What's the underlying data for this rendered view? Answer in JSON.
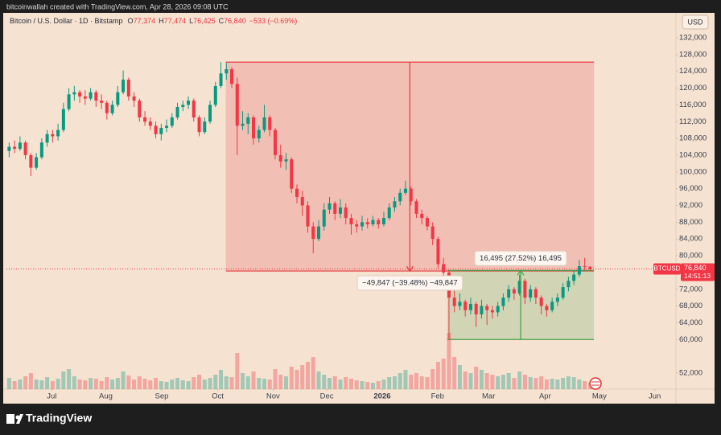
{
  "header": {
    "byline": "bitcoinwallah created with TradingView.com, Apr 28, 2026 09:08 UTC"
  },
  "footer": {
    "brand": "TradingView"
  },
  "chart_data": {
    "type": "candlestick",
    "legend": {
      "symbol": "Bitcoin / U.S. Dollar · 1D · Bitstamp",
      "items": [
        {
          "key": "O",
          "value": "77,374"
        },
        {
          "key": "H",
          "value": "77,474"
        },
        {
          "key": "L",
          "value": "76,425"
        },
        {
          "key": "C",
          "value": "76,840"
        }
      ],
      "change": "−533 (−0.69%)"
    },
    "currency": "USD",
    "price_tag": {
      "symbol": "BTCUSD",
      "price": "76,840",
      "countdown": "14:51:13"
    },
    "colors": {
      "up": "#089981",
      "down": "#f23645"
    },
    "xlim": [
      -0.5,
      122.8
    ],
    "ylim": [
      48160,
      138330
    ],
    "vlim": [
      0,
      100
    ],
    "xticks": [
      {
        "value": 7.85,
        "label": "Jul"
      },
      {
        "value": 17.8,
        "label": "Aug"
      },
      {
        "value": 28.1,
        "label": "Sep"
      },
      {
        "value": 38.4,
        "label": "Oct"
      },
      {
        "value": 48.6,
        "label": "Nov"
      },
      {
        "value": 58.5,
        "label": "Dec"
      },
      {
        "value": 68.7,
        "label": "2026"
      },
      {
        "value": 78.9,
        "label": "Feb"
      },
      {
        "value": 88.3,
        "label": "Mar"
      },
      {
        "value": 98.7,
        "label": "Apr"
      },
      {
        "value": 108.7,
        "label": "May"
      },
      {
        "value": 118.9,
        "label": "Jun"
      }
    ],
    "yticks": [
      {
        "value": 132000,
        "label": "132,000"
      },
      {
        "value": 128000,
        "label": "128,000"
      },
      {
        "value": 124000,
        "label": "124,000"
      },
      {
        "value": 120000,
        "label": "120,000"
      },
      {
        "value": 116000,
        "label": "116,000"
      },
      {
        "value": 112000,
        "label": "112,000"
      },
      {
        "value": 108000,
        "label": "108,000"
      },
      {
        "value": 104000,
        "label": "104,000"
      },
      {
        "value": 100000,
        "label": "100,000"
      },
      {
        "value": 96000,
        "label": "96,000"
      },
      {
        "value": 92000,
        "label": "92,000"
      },
      {
        "value": 88000,
        "label": "88,000"
      },
      {
        "value": 84000,
        "label": "84,000"
      },
      {
        "value": 80000,
        "label": "80,000"
      },
      {
        "value": 72000,
        "label": "72,000"
      },
      {
        "value": 68000,
        "label": "68,000"
      },
      {
        "value": 64000,
        "label": "64,000"
      },
      {
        "value": 60000,
        "label": "60,000"
      },
      {
        "value": 52000,
        "label": "52,000"
      }
    ],
    "open": [
      105000,
      106000,
      105500,
      107000,
      104000,
      101000,
      103500,
      107000,
      109000,
      108500,
      110000,
      115000,
      118500,
      119000,
      118000,
      117500,
      119000,
      117000,
      116500,
      114000,
      116000,
      119000,
      122000,
      118000,
      117000,
      113000,
      112000,
      111000,
      109000,
      110500,
      111000,
      113000,
      115500,
      116000,
      117000,
      113000,
      109500,
      112000,
      116000,
      120500,
      123500,
      124500,
      121000,
      111000,
      111500,
      113000,
      108000,
      110000,
      113000,
      110000,
      104000,
      102500,
      103000,
      96000,
      94000,
      92000,
      87000,
      84000,
      87000,
      91000,
      92500,
      90000,
      91500,
      89000,
      87500,
      87000,
      88000,
      87500,
      88500,
      87500,
      89000,
      91500,
      93000,
      95000,
      96000,
      93000,
      90000,
      89000,
      87000,
      84000,
      78000,
      76000,
      70000,
      68000,
      69000,
      67000,
      68500,
      66000,
      68000,
      67000,
      66500,
      68000,
      70000,
      72000,
      71000,
      74000,
      70000,
      72000,
      70000,
      68000,
      67000,
      69000,
      70000,
      72500,
      74000,
      75500,
      77500,
      77374
    ],
    "high": [
      107000,
      107500,
      108500,
      107500,
      104500,
      104500,
      108000,
      110000,
      110000,
      111500,
      116500,
      120000,
      120500,
      119500,
      119500,
      120000,
      119500,
      118500,
      117000,
      117000,
      120500,
      124200,
      122500,
      119000,
      117500,
      114500,
      113000,
      112000,
      111500,
      112500,
      114000,
      116500,
      117000,
      118000,
      117500,
      113500,
      113000,
      117000,
      121500,
      126200,
      126000,
      125000,
      122500,
      114500,
      114000,
      113500,
      111000,
      116000,
      113500,
      110500,
      106500,
      104500,
      103500,
      97000,
      95500,
      93000,
      88000,
      88500,
      92500,
      94000,
      93000,
      93500,
      92500,
      90000,
      88500,
      89500,
      89000,
      89500,
      89000,
      90500,
      92500,
      94000,
      96000,
      97900,
      96500,
      93500,
      91000,
      89500,
      88000,
      84500,
      79500,
      76500,
      72000,
      71000,
      69500,
      70000,
      69000,
      69500,
      68500,
      68000,
      69000,
      71000,
      73000,
      72500,
      75500,
      74500,
      73000,
      72500,
      70500,
      68500,
      70000,
      71000,
      73500,
      75000,
      76500,
      79000,
      79500,
      77474
    ],
    "low": [
      103500,
      104500,
      105000,
      103000,
      99000,
      100500,
      103000,
      106000,
      107000,
      107500,
      109500,
      114500,
      117000,
      116500,
      116000,
      117000,
      115500,
      115000,
      112500,
      113500,
      115500,
      118500,
      117000,
      115500,
      112000,
      111000,
      110000,
      108000,
      107500,
      109500,
      110500,
      112500,
      114500,
      115000,
      112000,
      108500,
      109000,
      111500,
      115500,
      120000,
      122000,
      120000,
      104000,
      110000,
      109000,
      106500,
      107000,
      109500,
      108500,
      103000,
      101000,
      100500,
      95000,
      92500,
      89500,
      85500,
      80600,
      83500,
      86000,
      90000,
      88500,
      89000,
      87500,
      85000,
      85500,
      86000,
      86500,
      87000,
      86500,
      87000,
      88500,
      90500,
      92000,
      94500,
      92000,
      89000,
      87500,
      86000,
      82500,
      77000,
      74500,
      60100,
      66500,
      67000,
      65500,
      66000,
      63000,
      65000,
      63500,
      65000,
      65500,
      67000,
      69000,
      69500,
      70500,
      68500,
      69000,
      68500,
      66000,
      65500,
      66500,
      68000,
      69500,
      71500,
      73000,
      75000,
      76500,
      76425
    ],
    "close": [
      106000,
      105500,
      107000,
      104000,
      101000,
      103500,
      107000,
      109000,
      108500,
      110000,
      115000,
      118500,
      119000,
      118000,
      117500,
      119000,
      117000,
      116500,
      114000,
      116000,
      119000,
      122000,
      118000,
      117000,
      113000,
      112000,
      111000,
      109000,
      110500,
      111000,
      113000,
      115500,
      116000,
      117000,
      113000,
      109500,
      112000,
      116000,
      120500,
      123500,
      124500,
      121000,
      111000,
      111500,
      113000,
      108000,
      110000,
      113000,
      110000,
      104000,
      102500,
      103000,
      96000,
      94000,
      92000,
      87000,
      84000,
      87000,
      91000,
      92500,
      90000,
      91500,
      89000,
      87500,
      87000,
      88000,
      87500,
      88500,
      87500,
      89000,
      91500,
      93000,
      95000,
      96000,
      93000,
      90000,
      89000,
      87000,
      84000,
      78000,
      76000,
      70000,
      68000,
      69000,
      67000,
      68500,
      66000,
      68000,
      67000,
      66500,
      68000,
      70000,
      72000,
      71000,
      74000,
      70000,
      72000,
      70000,
      68000,
      67000,
      69000,
      70000,
      72500,
      74000,
      75500,
      77500,
      77374,
      76840
    ],
    "volume": [
      14,
      10,
      12,
      16,
      20,
      12,
      11,
      15,
      10,
      13,
      22,
      25,
      16,
      12,
      11,
      14,
      13,
      10,
      15,
      12,
      14,
      22,
      17,
      12,
      16,
      13,
      11,
      14,
      10,
      9,
      12,
      14,
      11,
      10,
      15,
      18,
      12,
      14,
      18,
      24,
      16,
      15,
      45,
      20,
      16,
      22,
      14,
      13,
      12,
      25,
      18,
      16,
      28,
      24,
      30,
      34,
      40,
      22,
      18,
      14,
      16,
      12,
      15,
      13,
      11,
      10,
      9,
      8,
      10,
      12,
      15,
      16,
      20,
      24,
      18,
      20,
      16,
      15,
      25,
      34,
      38,
      70,
      40,
      30,
      22,
      20,
      28,
      24,
      20,
      18,
      16,
      18,
      20,
      14,
      22,
      18,
      15,
      14,
      16,
      12,
      13,
      12,
      14,
      16,
      15,
      12,
      10,
      8
    ],
    "measures": [
      {
        "label": "−49,847 (−39.48%) −49,847",
        "start": 39.9,
        "end": 107.7,
        "from": 126200,
        "to": 76353,
        "color": "#e5383f"
      },
      {
        "label": "16,495 (27.52%) 16,495",
        "start": 80.7,
        "end": 107.7,
        "from": 60000,
        "to": 76495,
        "color": "#43a047"
      }
    ]
  }
}
